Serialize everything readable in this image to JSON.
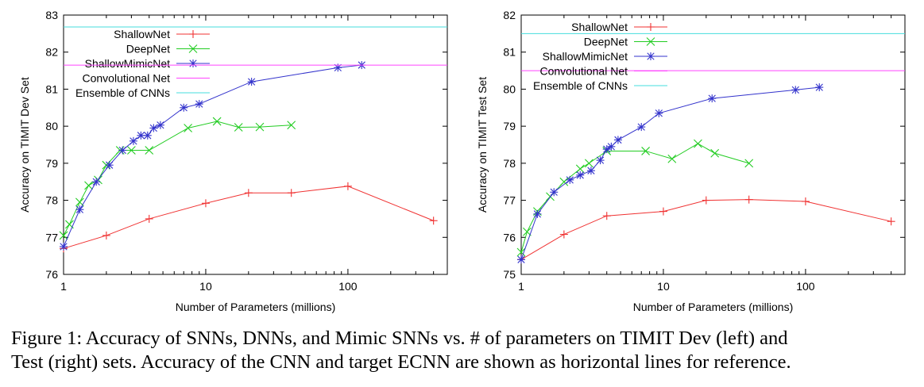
{
  "caption": {
    "line1": "Figure 1: Accuracy of SNNs, DNNs, and Mimic SNNs vs. # of parameters on TIMIT Dev (left) and",
    "line2": "Test (right) sets. Accuracy of the CNN and target ECNN are shown as horizontal lines for reference."
  },
  "chart_data": [
    {
      "type": "line",
      "title": "",
      "xlabel": "Number of Parameters (millions)",
      "ylabel": "Accuracy on TIMIT Dev Set",
      "xscale": "log",
      "xlim": [
        1,
        500
      ],
      "ylim": [
        76,
        83
      ],
      "xticks": [
        1,
        10,
        100
      ],
      "yticks": [
        76,
        77,
        78,
        79,
        80,
        81,
        82,
        83
      ],
      "grid": false,
      "legend": "top-left",
      "series": [
        {
          "name": "ShallowNet",
          "marker": "plus",
          "color": "#f03232",
          "x": [
            1,
            2,
            4,
            10,
            20,
            40,
            100,
            400
          ],
          "y": [
            76.7,
            77.05,
            77.5,
            77.92,
            78.2,
            78.2,
            78.38,
            77.45
          ]
        },
        {
          "name": "DeepNet",
          "marker": "x",
          "color": "#22cc22",
          "x": [
            1,
            1.1,
            1.3,
            1.5,
            1.75,
            2,
            2.5,
            3,
            4,
            7.5,
            12,
            17,
            24,
            40
          ],
          "y": [
            77.05,
            77.35,
            77.95,
            78.4,
            78.55,
            78.95,
            79.35,
            79.35,
            79.35,
            79.95,
            80.13,
            79.97,
            79.98,
            80.03
          ]
        },
        {
          "name": "ShallowMimicNet",
          "marker": "star",
          "color": "#3333cc",
          "x": [
            1,
            1.3,
            1.7,
            2.1,
            2.6,
            3.1,
            3.5,
            3.9,
            4.3,
            4.8,
            7,
            9,
            21,
            85,
            125
          ],
          "y": [
            76.75,
            77.75,
            78.5,
            78.95,
            79.35,
            79.6,
            79.75,
            79.75,
            79.95,
            80.03,
            80.5,
            80.6,
            81.2,
            81.58,
            81.65
          ]
        },
        {
          "name": "Convolutional Net",
          "type": "hline",
          "color": "#ff44ff",
          "y": 81.65
        },
        {
          "name": "Ensemble of CNNs",
          "type": "hline",
          "color": "#44dddd",
          "y": 82.68
        }
      ]
    },
    {
      "type": "line",
      "title": "",
      "xlabel": "Number of Parameters (millions)",
      "ylabel": "Accuracy on TIMIT Test Set",
      "xscale": "log",
      "xlim": [
        1,
        500
      ],
      "ylim": [
        75,
        82
      ],
      "xticks": [
        1,
        10,
        100
      ],
      "yticks": [
        75,
        76,
        77,
        78,
        79,
        80,
        81,
        82
      ],
      "grid": false,
      "legend": "top-left",
      "series": [
        {
          "name": "ShallowNet",
          "marker": "plus",
          "color": "#f03232",
          "x": [
            1,
            2,
            4,
            10,
            20,
            40,
            100,
            400
          ],
          "y": [
            75.4,
            76.08,
            76.58,
            76.7,
            77.0,
            77.02,
            76.97,
            76.43
          ]
        },
        {
          "name": "DeepNet",
          "marker": "x",
          "color": "#22cc22",
          "x": [
            1,
            1.1,
            1.3,
            1.6,
            2,
            2.6,
            3,
            4,
            7.5,
            11.5,
            17.5,
            23,
            40
          ],
          "y": [
            75.6,
            76.15,
            76.7,
            77.1,
            77.5,
            77.85,
            78.0,
            78.33,
            78.33,
            78.12,
            78.53,
            78.27,
            78.0
          ]
        },
        {
          "name": "ShallowMimicNet",
          "marker": "star",
          "color": "#3333cc",
          "x": [
            1,
            1.3,
            1.7,
            2.2,
            2.6,
            3.1,
            3.6,
            4,
            4.3,
            4.8,
            7,
            9.3,
            22,
            85,
            125
          ],
          "y": [
            75.4,
            76.63,
            77.22,
            77.55,
            77.68,
            77.8,
            78.08,
            78.38,
            78.45,
            78.63,
            78.98,
            79.35,
            79.75,
            79.98,
            80.05
          ]
        },
        {
          "name": "Convolutional Net",
          "type": "hline",
          "color": "#ff44ff",
          "y": 80.5
        },
        {
          "name": "Ensemble of CNNs",
          "type": "hline",
          "color": "#44dddd",
          "y": 81.5
        }
      ]
    }
  ]
}
